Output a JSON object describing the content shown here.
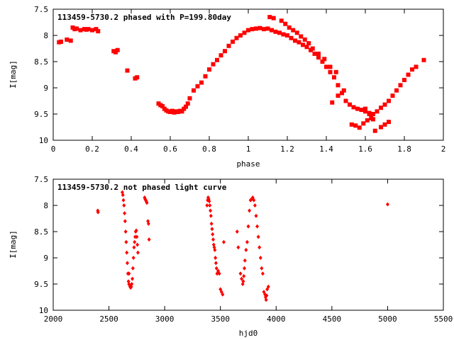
{
  "chart_data": [
    {
      "type": "scatter",
      "title": "113459-5730.2 phased with P=199.80day",
      "xlabel": "phase",
      "ylabel": "I[mag]",
      "xlim": [
        0,
        2
      ],
      "ylim": [
        7.5,
        10
      ],
      "y_inverted": true,
      "xticks": [
        0,
        0.2,
        0.4,
        0.6,
        0.8,
        1,
        1.2,
        1.4,
        1.6,
        1.8,
        2
      ],
      "xtick_labels": [
        "0",
        "0.2",
        "0.4",
        "0.6",
        "0.8",
        "1",
        "1.2",
        "1.4",
        "1.6",
        "1.8",
        "2"
      ],
      "yticks": [
        7.5,
        8,
        8.5,
        9,
        9.5,
        10
      ],
      "ytick_labels": [
        "7.5",
        "8",
        "8.5",
        "9",
        "9.5",
        "10"
      ],
      "marker": "square",
      "color": "#ff0000",
      "series": [
        {
          "x": [
            0.03,
            0.04,
            0.07,
            0.09,
            0.1,
            0.11,
            0.12,
            0.14,
            0.16,
            0.17,
            0.18,
            0.2,
            0.22,
            0.23,
            0.31,
            0.32,
            0.33,
            0.38,
            0.42,
            0.43,
            0.54,
            0.55,
            0.56,
            0.57,
            0.58,
            0.59,
            0.6,
            0.61,
            0.62,
            0.63,
            0.64,
            0.65,
            0.66,
            0.67,
            0.68,
            0.69,
            0.7,
            0.72,
            0.74,
            0.76,
            0.78,
            0.8,
            0.82,
            0.84,
            0.86,
            0.88,
            0.9,
            0.92,
            0.94,
            0.96,
            0.98,
            1.0,
            1.02,
            1.04,
            1.06,
            1.08,
            1.1,
            1.12,
            1.14,
            1.16,
            1.18,
            1.2,
            1.22,
            1.24,
            1.26,
            1.28,
            1.3,
            1.32,
            1.34,
            1.36,
            1.38,
            1.4,
            1.42,
            1.44,
            1.46,
            1.48,
            1.5,
            1.52,
            1.54,
            1.56,
            1.58,
            1.6,
            1.62,
            1.64,
            1.66,
            1.68,
            1.7,
            1.72,
            1.74,
            1.76,
            1.78,
            1.8,
            1.82,
            1.84,
            1.86,
            1.9,
            1.11,
            1.13,
            1.17,
            1.19,
            1.21,
            1.23,
            1.25,
            1.27,
            1.29,
            1.31,
            1.33,
            1.36,
            1.39,
            1.42,
            1.45,
            1.53,
            1.55,
            1.57,
            1.59,
            1.61,
            1.63,
            1.65,
            1.68,
            1.7,
            1.72,
            1.43,
            1.46,
            1.49,
            1.6,
            1.62,
            1.64
          ],
          "y": [
            8.13,
            8.12,
            8.08,
            8.1,
            7.85,
            7.88,
            7.87,
            7.9,
            7.88,
            7.89,
            7.88,
            7.9,
            7.88,
            7.92,
            8.3,
            8.32,
            8.28,
            8.67,
            8.82,
            8.8,
            9.3,
            9.33,
            9.35,
            9.4,
            9.43,
            9.45,
            9.46,
            9.44,
            9.47,
            9.45,
            9.46,
            9.44,
            9.45,
            9.4,
            9.36,
            9.3,
            9.2,
            9.05,
            8.97,
            8.9,
            8.78,
            8.65,
            8.55,
            8.47,
            8.38,
            8.3,
            8.2,
            8.12,
            8.05,
            8.0,
            7.95,
            7.9,
            7.88,
            7.87,
            7.86,
            7.88,
            7.87,
            7.9,
            7.93,
            7.95,
            7.98,
            8.0,
            8.05,
            8.1,
            8.13,
            8.18,
            8.22,
            8.28,
            8.35,
            8.42,
            8.5,
            8.6,
            8.7,
            8.8,
            8.95,
            9.1,
            9.25,
            9.32,
            9.37,
            9.4,
            9.42,
            9.45,
            9.48,
            9.5,
            9.45,
            9.38,
            9.32,
            9.25,
            9.15,
            9.05,
            8.95,
            8.85,
            8.75,
            8.65,
            8.6,
            8.47,
            7.65,
            7.67,
            7.72,
            7.78,
            7.85,
            7.9,
            7.95,
            8.02,
            8.08,
            8.15,
            8.25,
            8.35,
            8.45,
            8.6,
            8.7,
            9.7,
            9.72,
            9.76,
            9.68,
            9.62,
            9.58,
            9.82,
            9.75,
            9.7,
            9.65,
            9.28,
            9.15,
            9.05,
            9.4,
            9.5,
            9.6
          ]
        }
      ]
    },
    {
      "type": "scatter",
      "title": "113459-5730.2 not phased light curve",
      "xlabel": "hjd0",
      "ylabel": "I[mag]",
      "xlim": [
        2000,
        5500
      ],
      "ylim": [
        7.5,
        10
      ],
      "y_inverted": true,
      "xticks": [
        2000,
        2500,
        3000,
        3500,
        4000,
        4500,
        5000,
        5500
      ],
      "xtick_labels": [
        "2000",
        "2500",
        "3000",
        "3500",
        "4000",
        "4500",
        "5000",
        "5500"
      ],
      "yticks": [
        7.5,
        8,
        8.5,
        9,
        9.5,
        10
      ],
      "ytick_labels": [
        "7.5",
        "8",
        "8.5",
        "9",
        "9.5",
        "10"
      ],
      "marker": "diamond",
      "color": "#ff0000",
      "series": [
        {
          "x": [
            2400,
            2402,
            2620,
            2625,
            2630,
            2635,
            2640,
            2645,
            2650,
            2655,
            2660,
            2665,
            2670,
            2675,
            2680,
            2685,
            2690,
            2695,
            2700,
            2705,
            2710,
            2715,
            2720,
            2725,
            2730,
            2735,
            2740,
            2745,
            2750,
            2755,
            2760,
            2680,
            2820,
            2825,
            2830,
            2835,
            2840,
            2850,
            2855,
            2860,
            3380,
            3385,
            3390,
            3395,
            3400,
            3405,
            3410,
            3415,
            3420,
            3425,
            3430,
            3435,
            3440,
            3445,
            3450,
            3455,
            3460,
            3465,
            3470,
            3480,
            3490,
            3500,
            3510,
            3520,
            3530,
            3650,
            3660,
            3680,
            3690,
            3700,
            3705,
            3710,
            3715,
            3720,
            3730,
            3740,
            3750,
            3760,
            3770,
            3780,
            3790,
            3800,
            3810,
            3820,
            3830,
            3840,
            3850,
            3860,
            3870,
            3880,
            3890,
            3900,
            3905,
            3910,
            3915,
            3920,
            3930,
            5000
          ],
          "y": [
            8.1,
            8.13,
            7.75,
            7.8,
            7.9,
            8.0,
            8.15,
            8.3,
            8.5,
            8.7,
            8.9,
            9.1,
            9.3,
            9.45,
            9.5,
            9.52,
            9.55,
            9.57,
            9.55,
            9.5,
            9.4,
            9.2,
            9.0,
            8.8,
            8.7,
            8.6,
            8.5,
            8.48,
            8.6,
            8.75,
            8.9,
            9.3,
            7.85,
            7.88,
            7.9,
            7.92,
            7.95,
            8.3,
            8.35,
            8.65,
            8.0,
            7.9,
            7.85,
            7.88,
            7.92,
            8.0,
            8.1,
            8.2,
            8.35,
            8.45,
            8.55,
            8.65,
            8.75,
            8.8,
            8.85,
            9.0,
            9.1,
            9.2,
            9.3,
            9.25,
            9.3,
            9.6,
            9.65,
            9.7,
            8.7,
            8.5,
            8.8,
            9.3,
            9.4,
            9.5,
            9.45,
            9.35,
            9.2,
            9.05,
            8.85,
            8.7,
            8.4,
            8.1,
            7.9,
            7.88,
            7.85,
            7.9,
            8.0,
            8.2,
            8.4,
            8.6,
            8.8,
            9.0,
            9.2,
            9.3,
            9.65,
            9.7,
            9.75,
            9.8,
            9.72,
            9.6,
            9.55,
            7.98
          ]
        }
      ]
    }
  ]
}
